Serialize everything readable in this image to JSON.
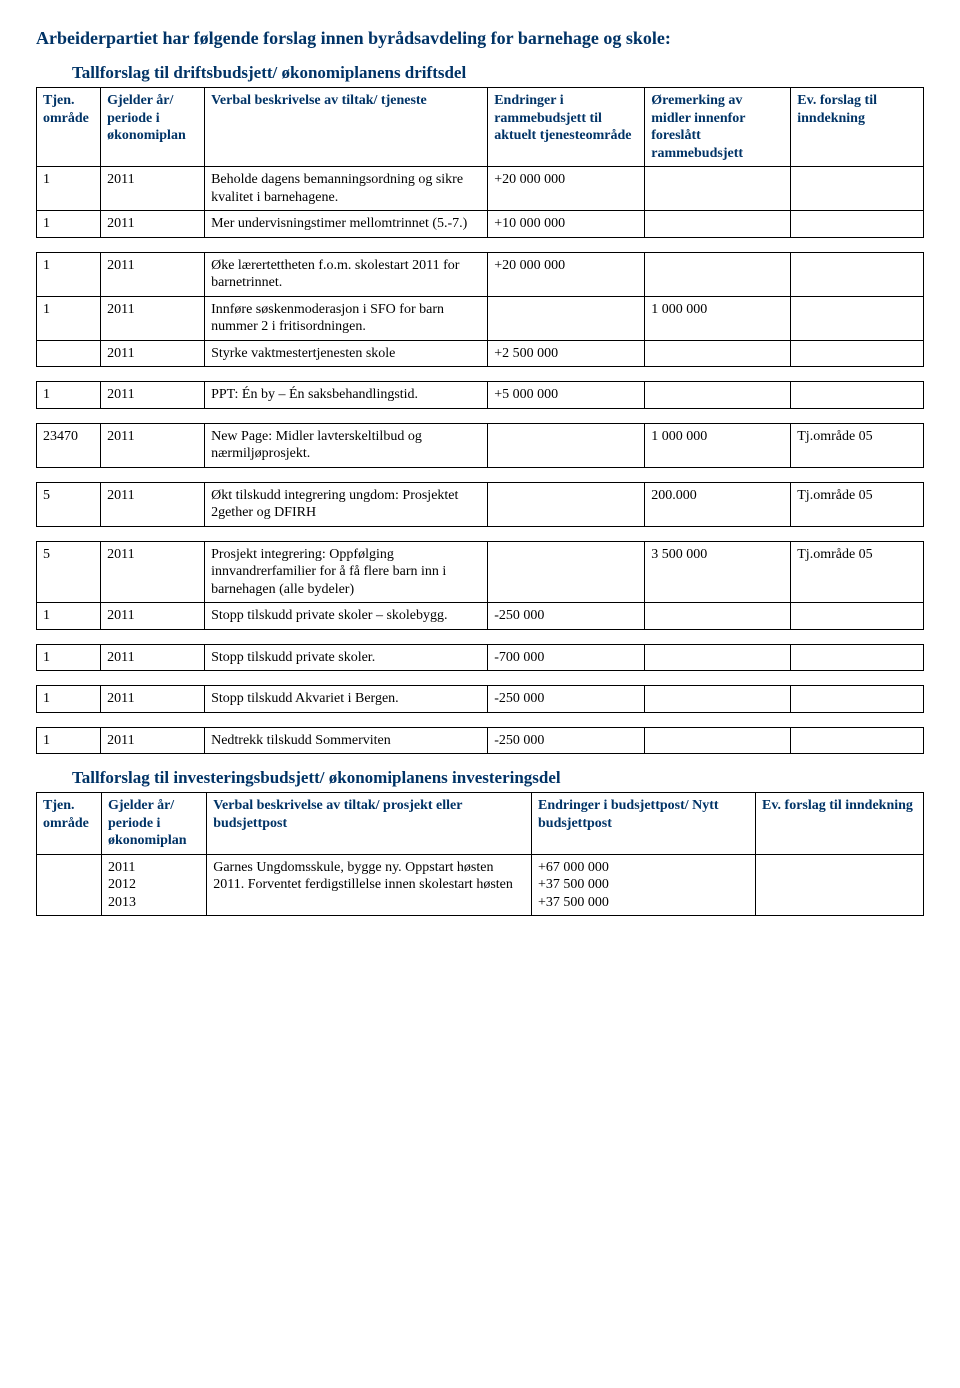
{
  "colors": {
    "heading": "#003366",
    "border": "#000000",
    "background": "#ffffff",
    "text": "#000000"
  },
  "page_title": "Arbeiderpartiet har følgende forslag innen byrådsavdeling for barnehage og skole:",
  "drift": {
    "heading": "Tallforslag til driftsbudsjett/ økonomiplanens driftsdel",
    "columns": {
      "tjen": "Tjen. område",
      "gjelder": "Gjelder år/ periode i økonomiplan",
      "verbal": "Verbal beskrivelse av tiltak/ tjeneste",
      "endringer": "Endringer i rammebudsjett til aktuelt tjenesteområde",
      "oremerking": "Øremerking av midler innenfor foreslått rammebudsjett",
      "inndekning": "Ev. forslag til inndekning"
    },
    "groups": [
      [
        {
          "tjen": "1",
          "gjelder": "2011",
          "verbal": "Beholde dagens bemanningsordning og sikre kvalitet i barnehagene.",
          "endringer": "+20 000 000",
          "oremerking": "",
          "inndekning": ""
        },
        {
          "tjen": "1",
          "gjelder": "2011",
          "verbal": "Mer undervisningstimer mellomtrinnet (5.-7.)",
          "endringer": "+10 000 000",
          "oremerking": "",
          "inndekning": ""
        }
      ],
      [
        {
          "tjen": "1",
          "gjelder": "2011",
          "verbal": "Øke lærertettheten f.o.m. skolestart 2011 for barnetrinnet.",
          "endringer": "+20 000 000",
          "oremerking": "",
          "inndekning": ""
        },
        {
          "tjen": "1",
          "gjelder": "2011",
          "verbal": "Innføre søskenmoderasjon i SFO for barn nummer 2 i fritisordningen.",
          "endringer": "",
          "oremerking": "1 000 000",
          "inndekning": ""
        },
        {
          "tjen": "",
          "gjelder": "2011",
          "verbal": "Styrke vaktmestertjenesten skole",
          "endringer": "+2 500 000",
          "oremerking": "",
          "inndekning": ""
        }
      ],
      [
        {
          "tjen": "1",
          "gjelder": "2011",
          "verbal": "PPT: Én by – Én saksbehandlingstid.",
          "endringer": "+5 000 000",
          "oremerking": "",
          "inndekning": ""
        }
      ],
      [
        {
          "tjen": "23470",
          "gjelder": "2011",
          "verbal": "New Page: Midler lavterskeltilbud og nærmiljøprosjekt.",
          "endringer": "",
          "oremerking": "1 000 000",
          "inndekning": "Tj.område 05"
        }
      ],
      [
        {
          "tjen": "5",
          "gjelder": "2011",
          "verbal": "Økt tilskudd integrering ungdom: Prosjektet 2gether og DFIRH",
          "endringer": "",
          "oremerking": "200.000",
          "inndekning": "Tj.område 05"
        }
      ],
      [
        {
          "tjen": "5",
          "gjelder": "2011",
          "verbal": "Prosjekt integrering: Oppfølging innvandrerfamilier for å få flere barn inn i barnehagen (alle bydeler)",
          "endringer": "",
          "oremerking": "3 500 000",
          "inndekning": "Tj.område  05"
        },
        {
          "tjen": "1",
          "gjelder": "2011",
          "verbal": "Stopp tilskudd private skoler – skolebygg.",
          "endringer": "-250 000",
          "oremerking": "",
          "inndekning": ""
        }
      ],
      [
        {
          "tjen": "1",
          "gjelder": "2011",
          "verbal": "Stopp tilskudd private skoler.",
          "endringer": "-700 000",
          "oremerking": "",
          "inndekning": ""
        }
      ],
      [
        {
          "tjen": "1",
          "gjelder": "2011",
          "verbal": "Stopp tilskudd Akvariet i Bergen.",
          "endringer": "-250 000",
          "oremerking": "",
          "inndekning": ""
        }
      ],
      [
        {
          "tjen": "1",
          "gjelder": "2011",
          "verbal": "Nedtrekk tilskudd Sommerviten",
          "endringer": "-250 000",
          "oremerking": "",
          "inndekning": ""
        }
      ]
    ]
  },
  "invest": {
    "heading": "Tallforslag til investeringsbudsjett/ økonomiplanens investeringsdel",
    "columns": {
      "tjen": "Tjen. område",
      "gjelder": "Gjelder år/ periode i økonomiplan",
      "verbal": "Verbal beskrivelse av tiltak/ prosjekt eller budsjettpost",
      "endringer": "Endringer i budsjettpost/ Nytt budsjettpost",
      "inndekning": "Ev. forslag til inndekning"
    },
    "rows": [
      {
        "tjen": "",
        "gjelder": "2011\n2012\n2013",
        "verbal": "Garnes Ungdomsskule, bygge ny. Oppstart høsten 2011. Forventet ferdigstillelse innen skolestart høsten",
        "endringer": "+67 000 000\n+37 500 000\n+37 500 000",
        "inndekning": ""
      }
    ]
  }
}
